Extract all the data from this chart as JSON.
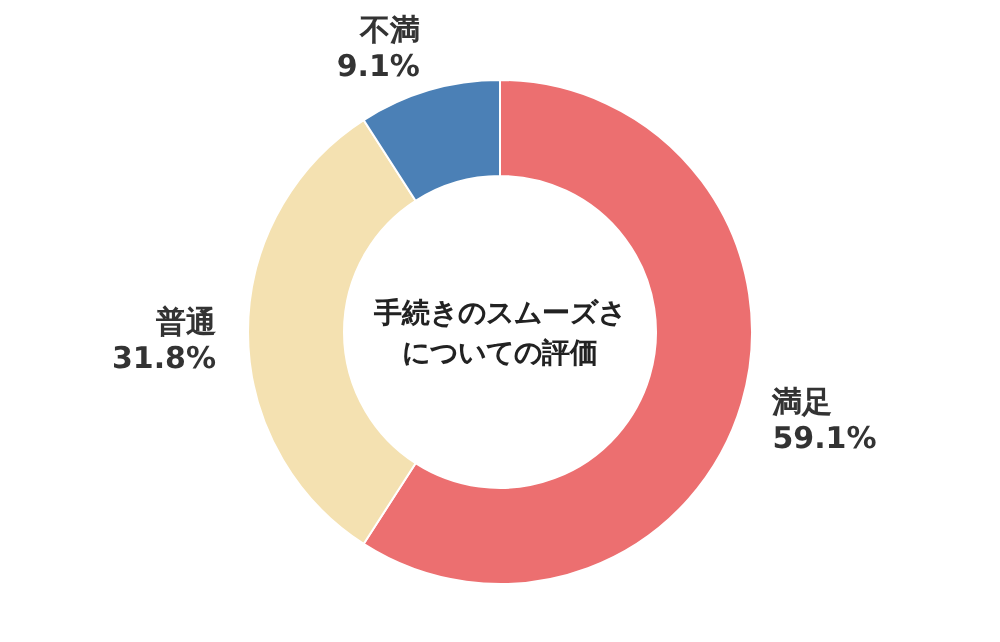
{
  "chart_data": {
    "type": "donut",
    "title": "手続きのスムーズさについての評価",
    "categories": [
      "満足",
      "普通",
      "不満"
    ],
    "values": [
      59.1,
      31.8,
      9.1
    ],
    "colors": [
      "#ec6f70",
      "#f4e1b1",
      "#4b80b6"
    ],
    "value_labels": [
      "59.1%",
      "31.8%",
      "9.1%"
    ]
  }
}
